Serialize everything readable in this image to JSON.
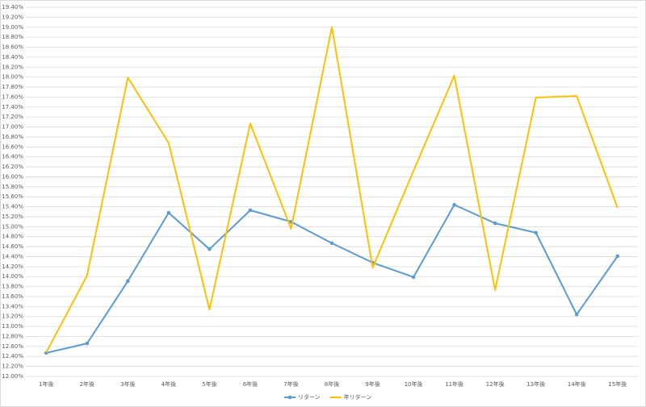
{
  "chart_data": {
    "type": "line",
    "categories": [
      "1年後",
      "2年後",
      "3年後",
      "4年後",
      "5年後",
      "6年後",
      "7年後",
      "8年後",
      "9年後",
      "10年後",
      "11年後",
      "12年後",
      "13年後",
      "14年後",
      "15年後"
    ],
    "series": [
      {
        "name": "リターン",
        "color": "#5b9bd5",
        "marker": true,
        "values": [
          12.47,
          12.66,
          13.91,
          15.28,
          14.55,
          15.33,
          15.1,
          14.67,
          14.28,
          13.99,
          15.44,
          15.07,
          14.88,
          13.24,
          14.41
        ]
      },
      {
        "name": "年リターン",
        "color": "#ffc000",
        "marker": false,
        "values": [
          12.48,
          14.02,
          17.99,
          16.68,
          13.34,
          17.07,
          14.96,
          19.0,
          14.18,
          16.12,
          18.03,
          13.73,
          17.59,
          17.62,
          15.38
        ]
      }
    ],
    "ylim": [
      12,
      19.4
    ],
    "yticks": [
      {
        "value": 12,
        "label": "12.00%"
      },
      {
        "value": 12.2,
        "label": "12.20%"
      },
      {
        "value": 12.4,
        "label": "12.40%"
      },
      {
        "value": 12.6,
        "label": "12.60%"
      },
      {
        "value": 12.8,
        "label": "12.80%"
      },
      {
        "value": 13,
        "label": "13.00%"
      },
      {
        "value": 13.2,
        "label": "13.20%"
      },
      {
        "value": 13.4,
        "label": "13.40%"
      },
      {
        "value": 13.6,
        "label": "13.60%"
      },
      {
        "value": 13.8,
        "label": "13.80%"
      },
      {
        "value": 14,
        "label": "14.00%"
      },
      {
        "value": 14.2,
        "label": "14.20%"
      },
      {
        "value": 14.4,
        "label": "14.40%"
      },
      {
        "value": 14.6,
        "label": "14.60%"
      },
      {
        "value": 14.8,
        "label": "14.80%"
      },
      {
        "value": 15,
        "label": "15.00%"
      },
      {
        "value": 15.2,
        "label": "15.20%"
      },
      {
        "value": 15.4,
        "label": "15.40%"
      },
      {
        "value": 15.6,
        "label": "15.60%"
      },
      {
        "value": 15.8,
        "label": "15.80%"
      },
      {
        "value": 16,
        "label": "16.00%"
      },
      {
        "value": 16.2,
        "label": "16.20%"
      },
      {
        "value": 16.4,
        "label": "16.40%"
      },
      {
        "value": 16.6,
        "label": "16.60%"
      },
      {
        "value": 16.8,
        "label": "16.80%"
      },
      {
        "value": 17,
        "label": "17.00%"
      },
      {
        "value": 17.2,
        "label": "17.20%"
      },
      {
        "value": 17.4,
        "label": "17.40%"
      },
      {
        "value": 17.6,
        "label": "17.60%"
      },
      {
        "value": 17.8,
        "label": "17.80%"
      },
      {
        "value": 18,
        "label": "18.00%"
      },
      {
        "value": 18.2,
        "label": "18.20%"
      },
      {
        "value": 18.4,
        "label": "18.40%"
      },
      {
        "value": 18.6,
        "label": "18.60%"
      },
      {
        "value": 18.8,
        "label": "18.80%"
      },
      {
        "value": 19,
        "label": "19.00%"
      },
      {
        "value": 19.2,
        "label": "19.20%"
      },
      {
        "value": 19.4,
        "label": "19.40%"
      }
    ],
    "grid": true,
    "legend": "bottom"
  }
}
